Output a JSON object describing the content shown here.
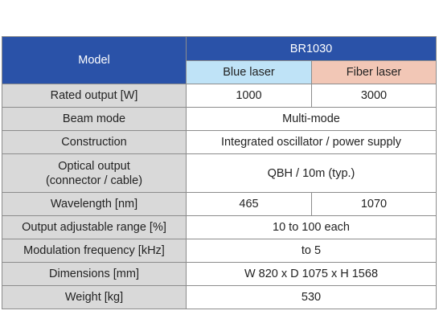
{
  "header": {
    "model_label": "Model",
    "model_name": "BR1030",
    "variants": [
      "Blue laser",
      "Fiber laser"
    ]
  },
  "rows": [
    {
      "label": "Rated output [W]",
      "values": [
        "1000",
        "3000"
      ]
    },
    {
      "label": "Beam mode",
      "value": "Multi-mode"
    },
    {
      "label": "Construction",
      "value": "Integrated oscillator / power supply"
    },
    {
      "label_lines": [
        "Optical output",
        "(connector / cable)"
      ],
      "value": "QBH / 10m (typ.)"
    },
    {
      "label": "Wavelength [nm]",
      "values": [
        "465",
        "1070"
      ]
    },
    {
      "label": "Output adjustable range [%]",
      "value": "10 to 100 each"
    },
    {
      "label": "Modulation frequency [kHz]",
      "value": "to 5"
    },
    {
      "label": "Dimensions [mm]",
      "value": "W 820 x D 1075 x H 1568"
    },
    {
      "label": "Weight [kg]",
      "value": "530"
    }
  ],
  "colors": {
    "header_blue": "#2a52a8",
    "blue_laser_bg": "#bfe3f7",
    "fiber_laser_bg": "#f2c7b6",
    "label_bg": "#d9d9d9"
  }
}
